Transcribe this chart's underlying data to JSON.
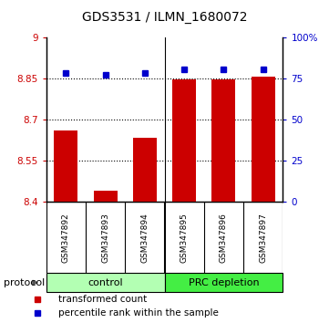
{
  "title": "GDS3531 / ILMN_1680072",
  "samples": [
    "GSM347892",
    "GSM347893",
    "GSM347894",
    "GSM347895",
    "GSM347896",
    "GSM347897"
  ],
  "bar_values": [
    8.66,
    8.44,
    8.635,
    8.845,
    8.845,
    8.857
  ],
  "percentile_values": [
    78.5,
    77.0,
    78.5,
    80.5,
    80.5,
    80.5
  ],
  "ylim_left": [
    8.4,
    9.0
  ],
  "ylim_right": [
    0,
    100
  ],
  "yticks_left": [
    8.4,
    8.55,
    8.7,
    8.85,
    9.0
  ],
  "yticks_right": [
    0,
    25,
    50,
    75,
    100
  ],
  "ytick_labels_left": [
    "8.4",
    "8.55",
    "8.7",
    "8.85",
    "9"
  ],
  "ytick_labels_right": [
    "0",
    "25",
    "50",
    "75",
    "100%"
  ],
  "hlines": [
    8.55,
    8.7,
    8.85
  ],
  "bar_color": "#cc0000",
  "percentile_color": "#0000cc",
  "bar_width": 0.6,
  "ctrl_color": "#b3ffb3",
  "prc_color": "#44ee44",
  "protocol_label": "protocol",
  "legend_bar_label": "transformed count",
  "legend_pct_label": "percentile rank within the sample",
  "tick_area_bg": "#cccccc",
  "n_ctrl": 3,
  "n_prc": 3
}
